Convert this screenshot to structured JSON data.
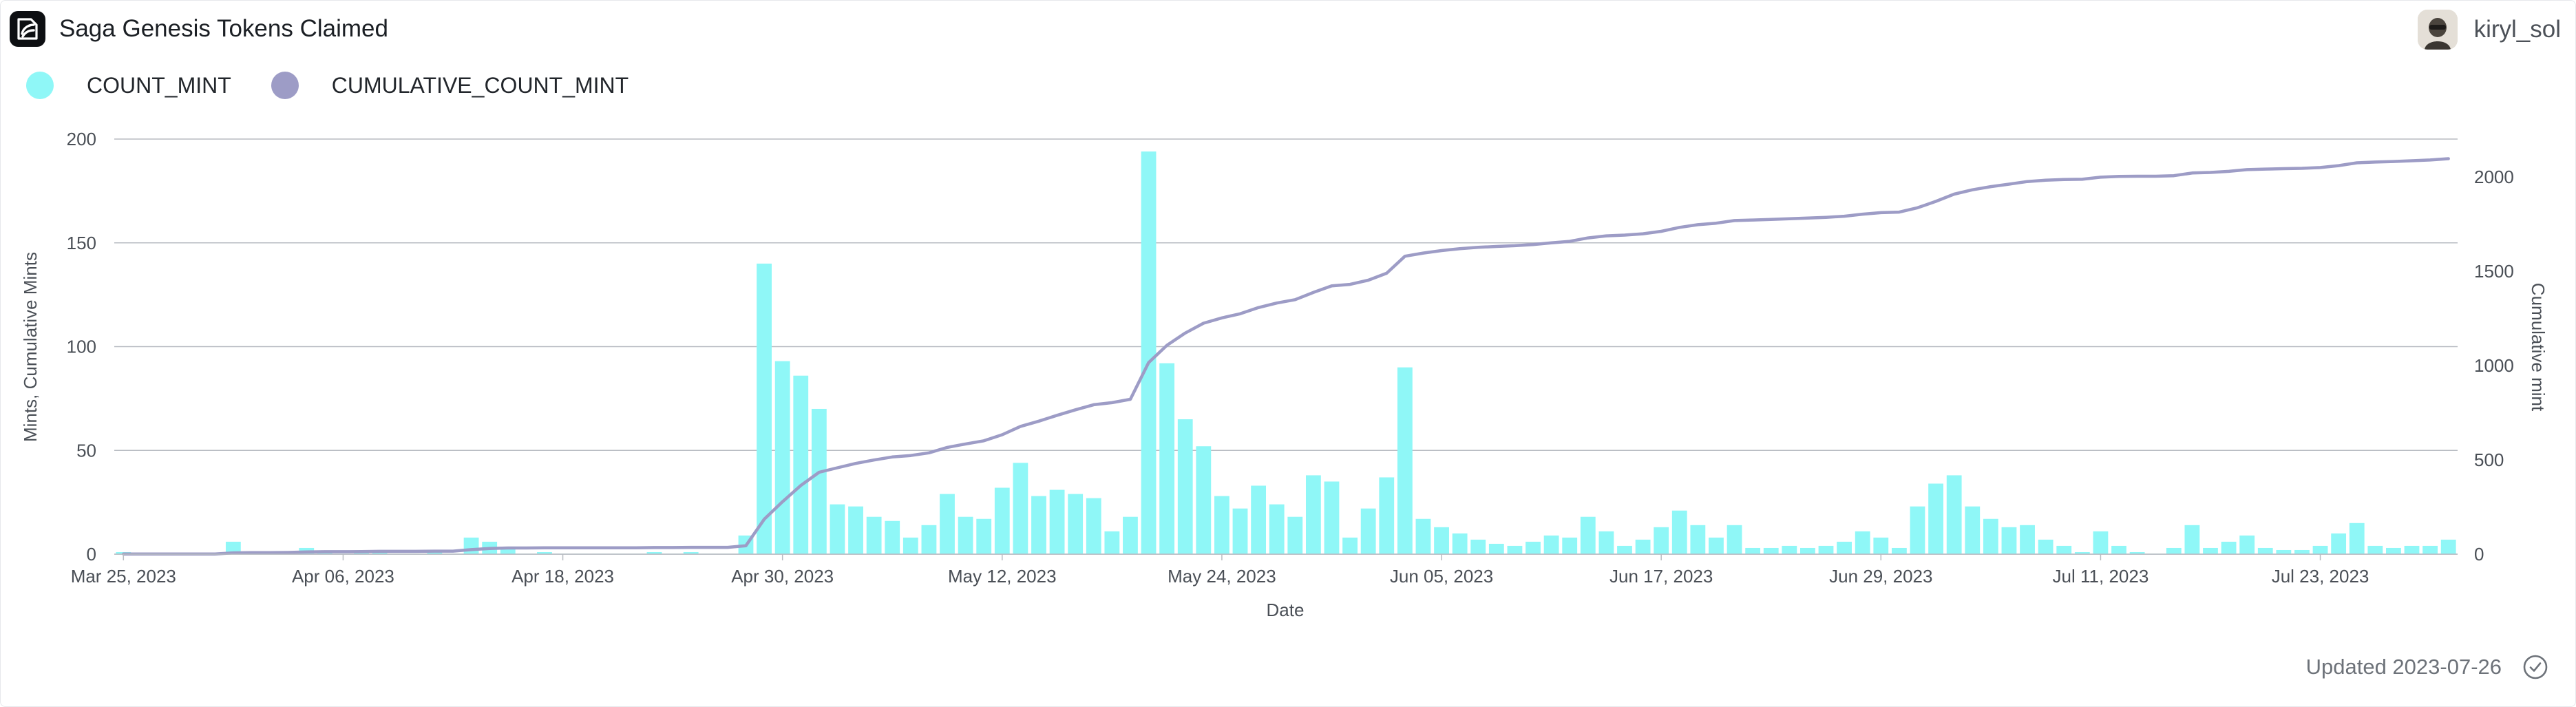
{
  "header": {
    "title": "Saga Genesis Tokens Claimed",
    "username": "kiryl_sol"
  },
  "footer": {
    "updated": "Updated 2023-07-26"
  },
  "colors": {
    "count_mint": "#8ff7f7",
    "cumulative_count_mint": "#9d9cc6",
    "gridline": "#b8bcc2"
  },
  "icons": {
    "logo": "flipside-logo-icon",
    "avatar": "user-avatar",
    "status": "check-circle-icon"
  },
  "chart_data": {
    "type": "bar",
    "start_date": "2023-03-25",
    "xlabel": "Date",
    "ylabel": "Mints, Cumulative Mints",
    "y2label": "Cumulative mint",
    "ylim": [
      0,
      200
    ],
    "y2lim": [
      0,
      2200
    ],
    "yticks": [
      "0",
      "50",
      "100",
      "150",
      "200"
    ],
    "y2ticks": [
      "0",
      "500",
      "1000",
      "1500",
      "2000"
    ],
    "xticks": [
      "Mar 25, 2023",
      "Apr 06, 2023",
      "Apr 18, 2023",
      "Apr 30, 2023",
      "May 12, 2023",
      "May 24, 2023",
      "Jun 05, 2023",
      "Jun 17, 2023",
      "Jun 29, 2023",
      "Jul 11, 2023",
      "Jul 23, 2023"
    ],
    "legend": "top-left",
    "grid": true,
    "series": [
      {
        "name": "COUNT_MINT",
        "type": "bar",
        "axis": "left",
        "values": [
          1,
          0,
          0,
          0,
          0,
          0,
          6,
          1,
          0,
          1,
          3,
          1,
          0,
          1,
          1,
          0,
          0,
          1,
          0,
          8,
          6,
          3,
          0,
          1,
          0,
          0,
          0,
          0,
          0,
          1,
          0,
          1,
          0,
          0,
          9,
          140,
          93,
          86,
          70,
          24,
          23,
          18,
          16,
          8,
          14,
          29,
          18,
          17,
          32,
          44,
          28,
          31,
          29,
          27,
          11,
          18,
          194,
          92,
          65,
          52,
          28,
          22,
          33,
          24,
          18,
          38,
          35,
          8,
          22,
          37,
          90,
          17,
          13,
          10,
          7,
          5,
          4,
          6,
          9,
          8,
          18,
          11,
          4,
          7,
          13,
          21,
          14,
          8,
          14,
          3,
          3,
          4,
          3,
          4,
          6,
          11,
          8,
          3,
          23,
          34,
          38,
          23,
          17,
          13,
          14,
          7,
          4,
          1,
          11,
          4,
          1,
          0,
          3,
          14,
          3,
          6,
          9,
          3,
          2,
          2,
          4,
          10,
          15,
          4,
          3,
          4,
          4,
          7
        ]
      },
      {
        "name": "CUMULATIVE_COUNT_MINT",
        "type": "line",
        "axis": "right",
        "values": [
          1,
          1,
          1,
          1,
          1,
          1,
          7,
          8,
          8,
          9,
          12,
          13,
          13,
          14,
          15,
          15,
          15,
          16,
          16,
          24,
          30,
          33,
          33,
          34,
          34,
          34,
          34,
          34,
          34,
          35,
          35,
          36,
          36,
          36,
          45,
          185,
          278,
          364,
          434,
          458,
          481,
          499,
          515,
          523,
          537,
          566,
          584,
          601,
          633,
          677,
          705,
          736,
          765,
          792,
          803,
          821,
          1015,
          1107,
          1172,
          1224,
          1252,
          1274,
          1307,
          1331,
          1349,
          1387,
          1422,
          1430,
          1452,
          1489,
          1579,
          1596,
          1609,
          1619,
          1626,
          1631,
          1635,
          1641,
          1650,
          1658,
          1676,
          1687,
          1691,
          1698,
          1711,
          1732,
          1746,
          1754,
          1768,
          1771,
          1774,
          1778,
          1781,
          1785,
          1791,
          1802,
          1810,
          1813,
          1836,
          1870,
          1908,
          1931,
          1948,
          1961,
          1975,
          1982,
          1986,
          1987,
          1998,
          2002,
          2003,
          2003,
          2006,
          2020,
          2023,
          2029,
          2038,
          2041,
          2043,
          2045,
          2049,
          2059,
          2074,
          2078,
          2081,
          2085,
          2089,
          2096
        ]
      }
    ]
  }
}
